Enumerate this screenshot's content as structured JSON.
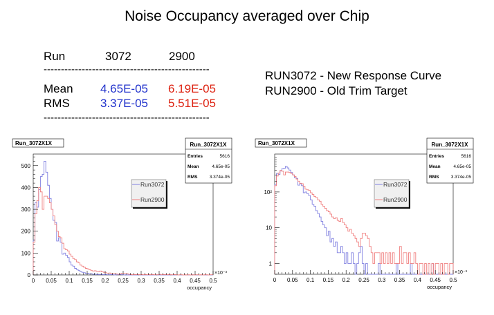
{
  "title": "Noise Occupancy averaged over Chip",
  "table": {
    "header": [
      "Run",
      "3072",
      "2900"
    ],
    "separator": "------------------------------------------------",
    "rows": [
      {
        "label": "Mean",
        "v3072": "4.65E-05",
        "v2900": "6.19E-05"
      },
      {
        "label": "RMS",
        "v3072": "3.37E-05",
        "v2900": "5.51E-05"
      }
    ]
  },
  "notes": [
    "RUN3072 - New Response Curve",
    "RUN2900 - Old Trim Target"
  ],
  "colors": {
    "run3072": "#8080e0",
    "run2900": "#f08080",
    "table_blue": "#2233cc",
    "table_red": "#dd2211"
  },
  "chart_data": [
    {
      "type": "bar",
      "scale": "linear",
      "title": "Run_3072X1X",
      "xlabel": "occupancy",
      "x_multiplier": "×10⁻³",
      "xlim": [
        0,
        0.5
      ],
      "ylim": [
        0,
        553
      ],
      "bin_width": 0.005,
      "xticks": [
        "0",
        "0.05",
        "0.1",
        "0.15",
        "0.2",
        "0.25",
        "0.3",
        "0.35",
        "0.4",
        "0.45",
        "0.5"
      ],
      "yticks": [
        "0",
        "100",
        "200",
        "300",
        "400",
        "500"
      ],
      "stats": {
        "title": "Run_3072X1X",
        "rows": [
          [
            "Entries",
            "5616"
          ],
          [
            "Mean",
            "4.65e-05"
          ],
          [
            "RMS",
            "3.374e-05"
          ]
        ]
      },
      "legend": [
        "Run3072",
        "Run2900"
      ]
    },
    {
      "type": "bar",
      "scale": "log",
      "title": "Run_3072X1X",
      "xlabel": "occupancy",
      "x_multiplier": "×10⁻³",
      "xlim": [
        0,
        0.5
      ],
      "ylim": [
        0.5,
        1150
      ],
      "bin_width": 0.005,
      "xticks": [
        "0",
        "0.05",
        "0.1",
        "0.15",
        "0.2",
        "0.25",
        "0.3",
        "0.35",
        "0.4",
        "0.45",
        "0.5"
      ],
      "yticks": [
        "1",
        "10",
        "10²"
      ],
      "stats": {
        "title": "Run_3072X1X",
        "rows": [
          [
            "Entries",
            "5616"
          ],
          [
            "Mean",
            "4.65e-05"
          ],
          [
            "RMS",
            "3.374e-05"
          ]
        ]
      },
      "legend": [
        "Run3072",
        "Run2900"
      ]
    }
  ],
  "series": {
    "Run3072": [
      160,
      330,
      310,
      390,
      450,
      460,
      520,
      470,
      410,
      350,
      300,
      250,
      240,
      155,
      170,
      150,
      95,
      100,
      90,
      80,
      60,
      45,
      40,
      30,
      25,
      20,
      15,
      12,
      10,
      6,
      8,
      4,
      5,
      3,
      4,
      2,
      2,
      3,
      2,
      1,
      2,
      1,
      1,
      2,
      1,
      0,
      1,
      2,
      3,
      1,
      0,
      1,
      0,
      0,
      0,
      0,
      0,
      0,
      1,
      0,
      0,
      0,
      0,
      0,
      0,
      0,
      0,
      0,
      1,
      0,
      0,
      0,
      0,
      0,
      0,
      0,
      1,
      0,
      0,
      0,
      0,
      0,
      0,
      0,
      0,
      0,
      0,
      0,
      1,
      0,
      0,
      0,
      0,
      0,
      0,
      0,
      0,
      0,
      0,
      0
    ],
    "Run2900": [
      150,
      280,
      340,
      400,
      380,
      300,
      360,
      360,
      350,
      330,
      300,
      270,
      230,
      200,
      175,
      170,
      145,
      120,
      115,
      110,
      95,
      85,
      75,
      70,
      60,
      55,
      45,
      40,
      35,
      30,
      28,
      24,
      20,
      18,
      19,
      16,
      15,
      18,
      14,
      12,
      10,
      8,
      9,
      7,
      6,
      5,
      4,
      3,
      5,
      7,
      7,
      6,
      5,
      3,
      2,
      1,
      2,
      2,
      2,
      1,
      2,
      1,
      2,
      1,
      2,
      1,
      2,
      1,
      1,
      1,
      3,
      1,
      2,
      2,
      1,
      2,
      1,
      1,
      2,
      1,
      0,
      1,
      1,
      0,
      1,
      0,
      1,
      0,
      1,
      0,
      1,
      1,
      0,
      1,
      0,
      1,
      1,
      0,
      1,
      1
    ]
  }
}
